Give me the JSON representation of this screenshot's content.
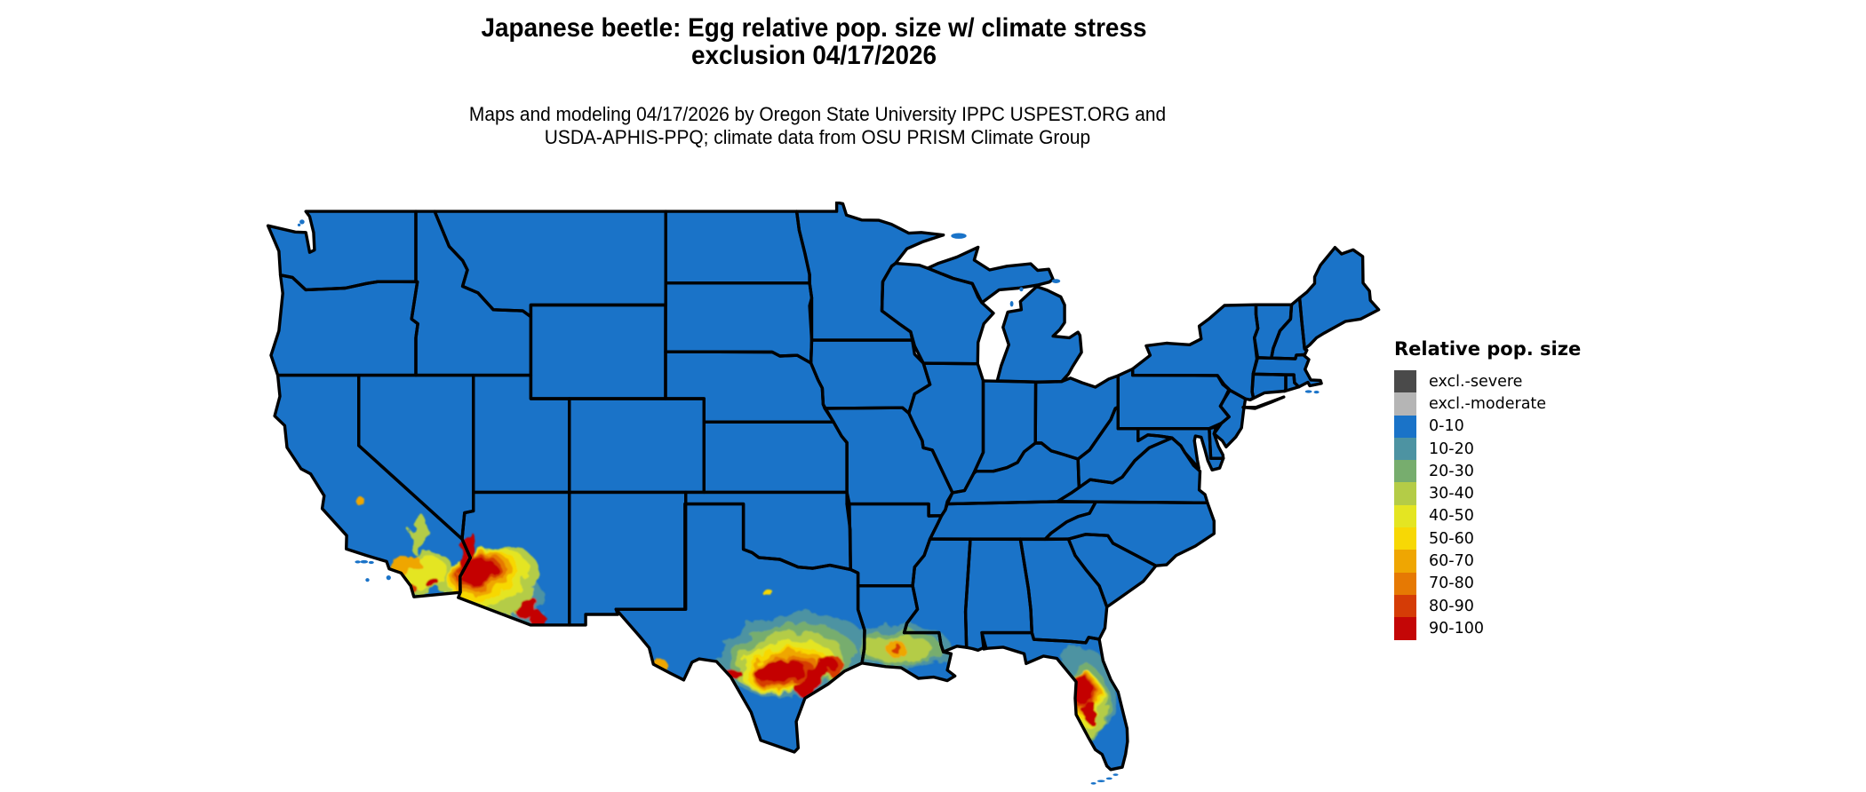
{
  "header": {
    "title_line1": "Japanese beetle: Egg relative pop. size w/ climate stress",
    "title_line2": "exclusion 04/17/2026",
    "subtitle_line1": "Maps and modeling 04/17/2026 by Oregon State University IPPC USPEST.ORG and",
    "subtitle_line2": "USDA-APHIS-PPQ; climate data from OSU PRISM Climate Group"
  },
  "legend": {
    "title": "Relative pop. size",
    "items": [
      {
        "label": "excl.-severe",
        "color": "#4a4a4a"
      },
      {
        "label": "excl.-moderate",
        "color": "#b5b5b5"
      },
      {
        "label": "0-10",
        "color": "#1a73c8"
      },
      {
        "label": "10-20",
        "color": "#4d93a2"
      },
      {
        "label": "20-30",
        "color": "#77ad6e"
      },
      {
        "label": "30-40",
        "color": "#b4cc47"
      },
      {
        "label": "40-50",
        "color": "#e4e522"
      },
      {
        "label": "50-60",
        "color": "#f7d805"
      },
      {
        "label": "60-70",
        "color": "#efa602"
      },
      {
        "label": "70-80",
        "color": "#e67903"
      },
      {
        "label": "80-90",
        "color": "#d53c06"
      },
      {
        "label": "90-100",
        "color": "#c40606"
      }
    ]
  },
  "map": {
    "region": "Conterminous United States with state boundaries",
    "land_class": "0-10",
    "land_color": "#1a73c8",
    "border_color": "#000000",
    "background_color": "#ffffff",
    "hotspots": [
      {
        "name": "southern-california-arizona",
        "peak_class": "90-100"
      },
      {
        "name": "south-central-texas-gulf-coast",
        "peak_class": "90-100"
      },
      {
        "name": "louisiana-gulf-coast",
        "peak_class": "80-90"
      },
      {
        "name": "central-florida",
        "peak_class": "90-100"
      }
    ]
  }
}
